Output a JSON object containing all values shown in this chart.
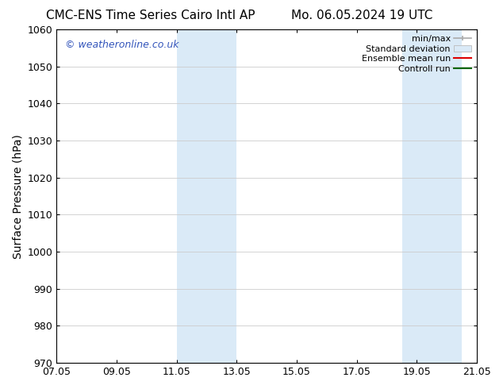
{
  "title_left": "CMC-ENS Time Series Cairo Intl AP",
  "title_right": "Mo. 06.05.2024 19 UTC",
  "ylabel": "Surface Pressure (hPa)",
  "ylim": [
    970,
    1060
  ],
  "yticks": [
    970,
    980,
    990,
    1000,
    1010,
    1020,
    1030,
    1040,
    1050,
    1060
  ],
  "xtick_labels": [
    "07.05",
    "09.05",
    "11.05",
    "13.05",
    "15.05",
    "17.05",
    "19.05",
    "21.05"
  ],
  "xtick_positions": [
    0,
    2,
    4,
    6,
    8,
    10,
    12,
    14
  ],
  "xlim": [
    0,
    14
  ],
  "shaded_bands": [
    {
      "x_start": 4.0,
      "x_end": 6.0
    },
    {
      "x_start": 11.5,
      "x_end": 13.5
    }
  ],
  "shaded_color": "#daeaf7",
  "watermark_text": "© weatheronline.co.uk",
  "watermark_color": "#3355bb",
  "legend_entries": [
    {
      "label": "min/max",
      "color": "#aaaaaa",
      "type": "errbar"
    },
    {
      "label": "Standard deviation",
      "color": "#daeaf7",
      "type": "fillbar"
    },
    {
      "label": "Ensemble mean run",
      "color": "#dd0000",
      "type": "line"
    },
    {
      "label": "Controll run",
      "color": "#006600",
      "type": "line"
    }
  ],
  "background_color": "#ffffff",
  "grid_color": "#cccccc",
  "title_fontsize": 11,
  "tick_fontsize": 9,
  "ylabel_fontsize": 10,
  "watermark_fontsize": 9,
  "legend_fontsize": 8
}
